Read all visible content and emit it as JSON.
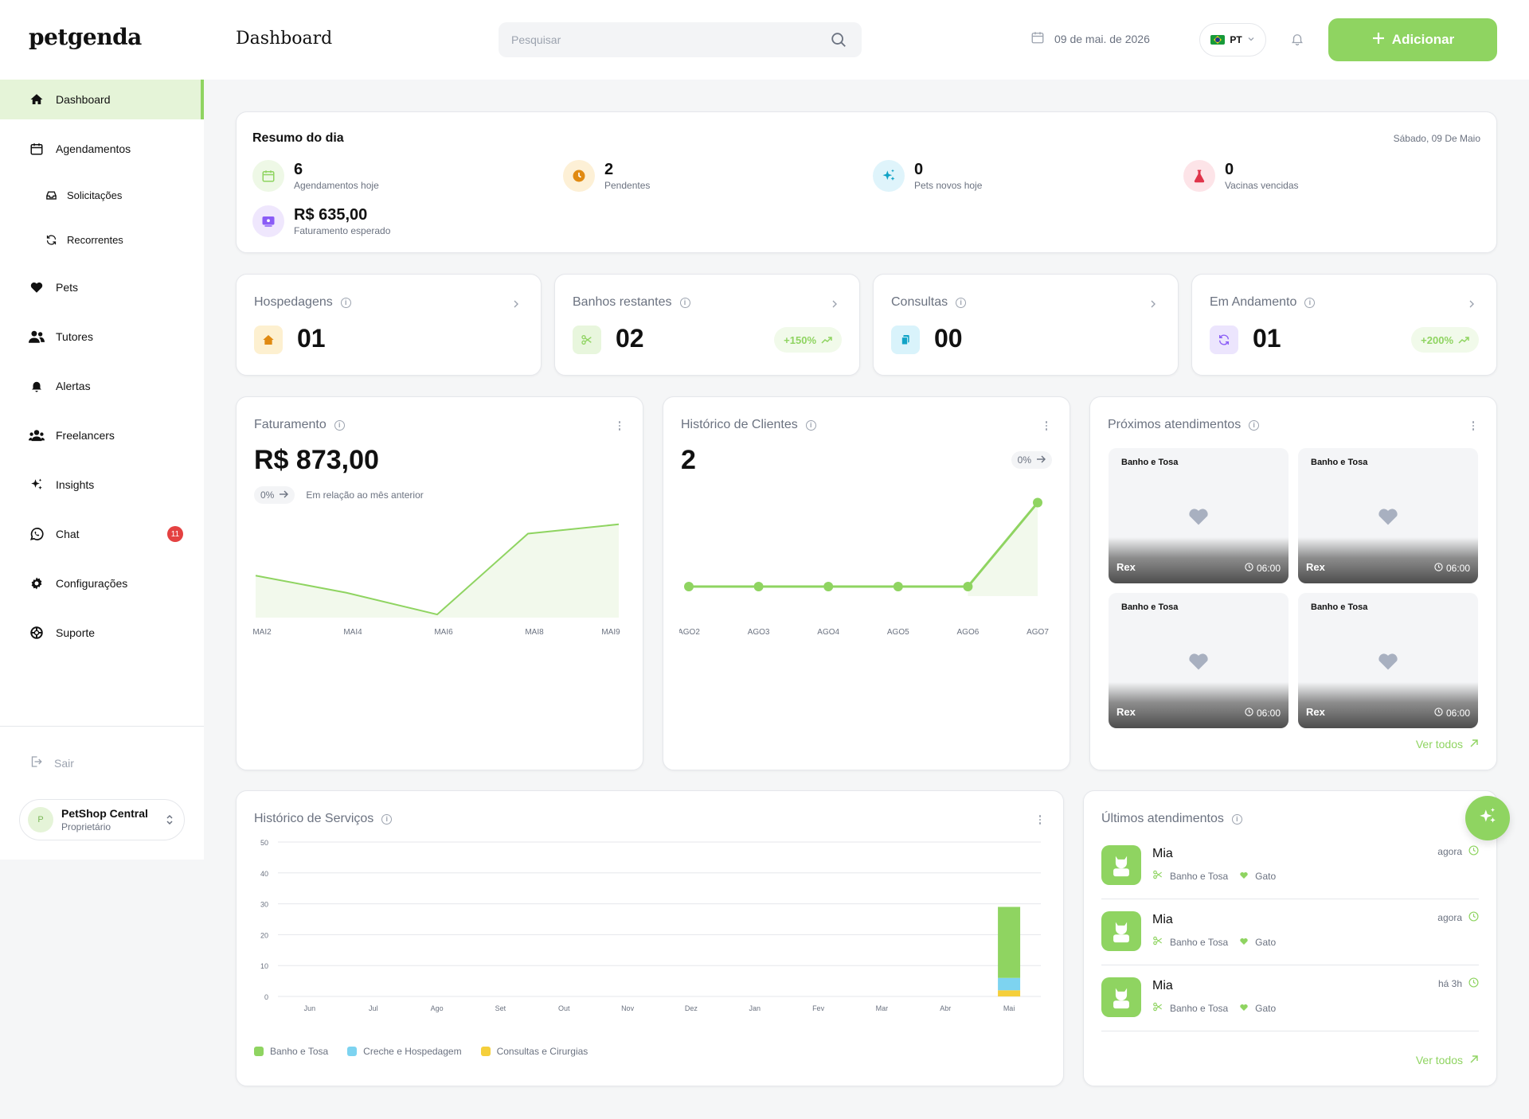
{
  "app": {
    "logo": "petgenda",
    "page_title": "Dashboard"
  },
  "header": {
    "search_placeholder": "Pesquisar",
    "date": "09 de mai. de 2026",
    "lang": "PT",
    "add_label": "Adicionar"
  },
  "sidebar": {
    "items": [
      {
        "label": "Dashboard",
        "icon": "home-icon"
      },
      {
        "label": "Agendamentos",
        "icon": "calendar-icon"
      },
      {
        "label": "Solicitações",
        "icon": "inbox-icon"
      },
      {
        "label": "Recorrentes",
        "icon": "refresh-icon"
      },
      {
        "label": "Pets",
        "icon": "heart-icon"
      },
      {
        "label": "Tutores",
        "icon": "users-icon"
      },
      {
        "label": "Alertas",
        "icon": "bell-icon"
      },
      {
        "label": "Freelancers",
        "icon": "group-icon"
      },
      {
        "label": "Insights",
        "icon": "sparkles-icon"
      },
      {
        "label": "Chat",
        "icon": "whatsapp-icon",
        "badge": "11"
      },
      {
        "label": "Configurações",
        "icon": "gear-icon"
      },
      {
        "label": "Suporte",
        "icon": "lifebuoy-icon"
      }
    ],
    "logout": "Sair",
    "shop": {
      "initial": "P",
      "name": "PetShop Central",
      "role": "Proprietário"
    }
  },
  "resumo": {
    "title": "Resumo do dia",
    "date": "Sábado, 09 De Maio",
    "stats": [
      {
        "value": "6",
        "label": "Agendamentos hoje",
        "icon": "calendar-icon",
        "color": "#8fd461"
      },
      {
        "value": "2",
        "label": "Pendentes",
        "icon": "clock-icon",
        "color": "#e08a12"
      },
      {
        "value": "0",
        "label": "Pets novos hoje",
        "icon": "sparkles-icon",
        "color": "#11a3c6"
      },
      {
        "value": "0",
        "label": "Vacinas vencidas",
        "icon": "flask-icon",
        "color": "#e0344a"
      },
      {
        "value": "R$ 635,00",
        "label": "Faturamento esperado",
        "icon": "money-icon",
        "color": "#8a5cf6"
      }
    ]
  },
  "mini_cards": [
    {
      "title": "Hospedagens",
      "value": "01",
      "icon": "house-icon",
      "growth": ""
    },
    {
      "title": "Banhos restantes",
      "value": "02",
      "icon": "scissors-icon",
      "growth": "+150%"
    },
    {
      "title": "Consultas",
      "value": "00",
      "icon": "clipboard-icon",
      "growth": ""
    },
    {
      "title": "Em Andamento",
      "value": "01",
      "icon": "refresh-icon",
      "growth": "+200%"
    }
  ],
  "faturamento": {
    "title": "Faturamento",
    "value": "R$ 873,00",
    "pct": "0%",
    "comparison": "Em relação ao mês anterior",
    "chart_data": {
      "type": "area",
      "x": [
        "MAI2",
        "MAI4",
        "MAI6",
        "MAI8",
        "MAI9"
      ],
      "values": [
        270,
        160,
        20,
        540,
        600
      ],
      "ylim": [
        0,
        650
      ]
    }
  },
  "historico_clientes": {
    "title": "Histórico de Clientes",
    "value": "2",
    "pct": "0%",
    "chart_data": {
      "type": "line",
      "x": [
        "AGO2",
        "AGO3",
        "AGO4",
        "AGO5",
        "AGO6",
        "AGO7"
      ],
      "values": [
        0,
        0,
        0,
        0,
        0,
        2
      ],
      "ylim": [
        0,
        2.2
      ]
    }
  },
  "proximos": {
    "title": "Próximos atendimentos",
    "items": [
      {
        "service": "Banho e Tosa",
        "pet": "Rex",
        "time": "06:00"
      },
      {
        "service": "Banho e Tosa",
        "pet": "Rex",
        "time": "06:00"
      },
      {
        "service": "Banho e Tosa",
        "pet": "Rex",
        "time": "06:00"
      },
      {
        "service": "Banho e Tosa",
        "pet": "Rex",
        "time": "06:00"
      }
    ],
    "ver_todos": "Ver todos"
  },
  "historico_servicos": {
    "title": "Histórico de Serviços",
    "chart_data": {
      "type": "bar",
      "stacked": true,
      "categories": [
        "Jun",
        "Jul",
        "Ago",
        "Set",
        "Out",
        "Nov",
        "Dez",
        "Jan",
        "Fev",
        "Mar",
        "Abr",
        "Mai"
      ],
      "yticks": [
        "50",
        "40",
        "30",
        "20",
        "10",
        "0"
      ],
      "ylim": [
        0,
        50
      ],
      "series": [
        {
          "name": "Consultas e Cirurgias",
          "color": "#f5cf3b",
          "values": [
            0,
            0,
            0,
            0,
            0,
            0,
            0,
            0,
            0,
            0,
            0,
            2
          ]
        },
        {
          "name": "Creche e Hospedagem",
          "color": "#7dd3f0",
          "values": [
            0,
            0,
            0,
            0,
            0,
            0,
            0,
            0,
            0,
            0,
            0,
            4
          ]
        },
        {
          "name": "Banho e Tosa",
          "color": "#8fd461",
          "values": [
            0,
            0,
            0,
            0,
            0,
            0,
            0,
            0,
            0,
            0,
            0,
            23
          ]
        }
      ],
      "legend": [
        "Banho e Tosa",
        "Creche e Hospedagem",
        "Consultas e Cirurgias"
      ]
    }
  },
  "ultimos": {
    "title": "Últimos atendimentos",
    "items": [
      {
        "pet": "Mia",
        "service": "Banho e Tosa",
        "species": "Gato",
        "time": "agora"
      },
      {
        "pet": "Mia",
        "service": "Banho e Tosa",
        "species": "Gato",
        "time": "agora"
      },
      {
        "pet": "Mia",
        "service": "Banho e Tosa",
        "species": "Gato",
        "time": "há 3h"
      }
    ],
    "ver_todos": "Ver todos"
  }
}
